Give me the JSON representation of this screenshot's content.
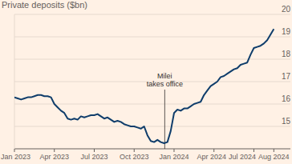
{
  "chart_data": {
    "type": "line",
    "title": "Private deposits ($bn)",
    "color": "#0f3d6b",
    "grid": true,
    "x": [
      0,
      0.25,
      0.5,
      0.75,
      1,
      1.25,
      1.5,
      1.75,
      2,
      2.25,
      2.5,
      2.75,
      3,
      3.25,
      3.5,
      3.75,
      4,
      4.25,
      4.5,
      4.75,
      5,
      5.25,
      5.5,
      5.75,
      6,
      6.25,
      6.5,
      6.75,
      7,
      7.25,
      7.5,
      7.75,
      8,
      8.25,
      8.5,
      8.75,
      9,
      9.25,
      9.5,
      9.75,
      10,
      10.25,
      10.5,
      10.75,
      11,
      11.25,
      11.5,
      11.75,
      12,
      12.25,
      12.5,
      12.75,
      13,
      13.25,
      13.5,
      13.75,
      14,
      14.25,
      14.5,
      14.75,
      15,
      15.25,
      15.5,
      15.75,
      16,
      16.25,
      16.5,
      16.75,
      17,
      17.25,
      17.5,
      17.75,
      18,
      18.25,
      18.5,
      18.75,
      19,
      19.25,
      19.5
    ],
    "values": [
      16.3,
      16.25,
      16.2,
      16.25,
      16.3,
      16.3,
      16.35,
      16.4,
      16.4,
      16.35,
      16.35,
      16.3,
      16.0,
      15.85,
      15.7,
      15.6,
      15.35,
      15.3,
      15.35,
      15.3,
      15.45,
      15.4,
      15.45,
      15.5,
      15.5,
      15.55,
      15.45,
      15.35,
      15.4,
      15.3,
      15.2,
      15.25,
      15.2,
      15.1,
      15.05,
      15.0,
      15.0,
      14.95,
      14.9,
      15.0,
      14.6,
      14.35,
      14.3,
      14.4,
      14.3,
      14.25,
      14.3,
      14.8,
      15.6,
      15.75,
      15.7,
      15.8,
      15.8,
      15.9,
      16.0,
      16.05,
      16.1,
      16.4,
      16.6,
      16.8,
      16.9,
      17.0,
      17.2,
      17.25,
      17.35,
      17.45,
      17.55,
      17.6,
      17.75,
      17.8,
      17.85,
      18.2,
      18.5,
      18.55,
      18.6,
      18.7,
      18.85,
      19.1,
      19.35
    ],
    "xlim": [
      0,
      19.6
    ],
    "xticks": [
      {
        "value": 0,
        "label": "Jan 2023"
      },
      {
        "value": 3,
        "label": "Apr 2023"
      },
      {
        "value": 6,
        "label": "Jul 2023"
      },
      {
        "value": 9,
        "label": "Oct 2023"
      },
      {
        "value": 12,
        "label": "Jan 2024"
      },
      {
        "value": 15,
        "label": "Apr 2024"
      },
      {
        "value": 18,
        "label": "Jul 2024"
      },
      {
        "value": 19.5,
        "label": "Aug 2024"
      }
    ],
    "ylim": [
      14,
      20
    ],
    "yticks": [
      15,
      16,
      17,
      18,
      19,
      20
    ],
    "annotations": [
      {
        "text": "Milei takes office",
        "x": 11.3
      }
    ]
  }
}
